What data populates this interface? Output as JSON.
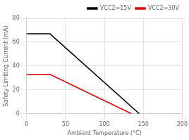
{
  "chart_data": {
    "type": "line",
    "xlabel": "Ambient Temperature (°C)",
    "ylabel": "Safety Limiting Current (mA)",
    "series": [
      {
        "name": "VCC2=15V",
        "color": "#000000",
        "x": [
          0,
          30,
          145
        ],
        "values": [
          67,
          67,
          0
        ]
      },
      {
        "name": "VCC2=30V",
        "color": "#dd0000",
        "x": [
          0,
          30,
          135
        ],
        "values": [
          33,
          33,
          0
        ]
      }
    ],
    "xlim": [
      0,
      200
    ],
    "ylim": [
      0,
      80
    ],
    "xticks": [
      0,
      50,
      100,
      150,
      200
    ],
    "yticks": [
      0,
      20,
      40,
      60,
      80
    ],
    "grid": true,
    "legend": "upper right"
  }
}
